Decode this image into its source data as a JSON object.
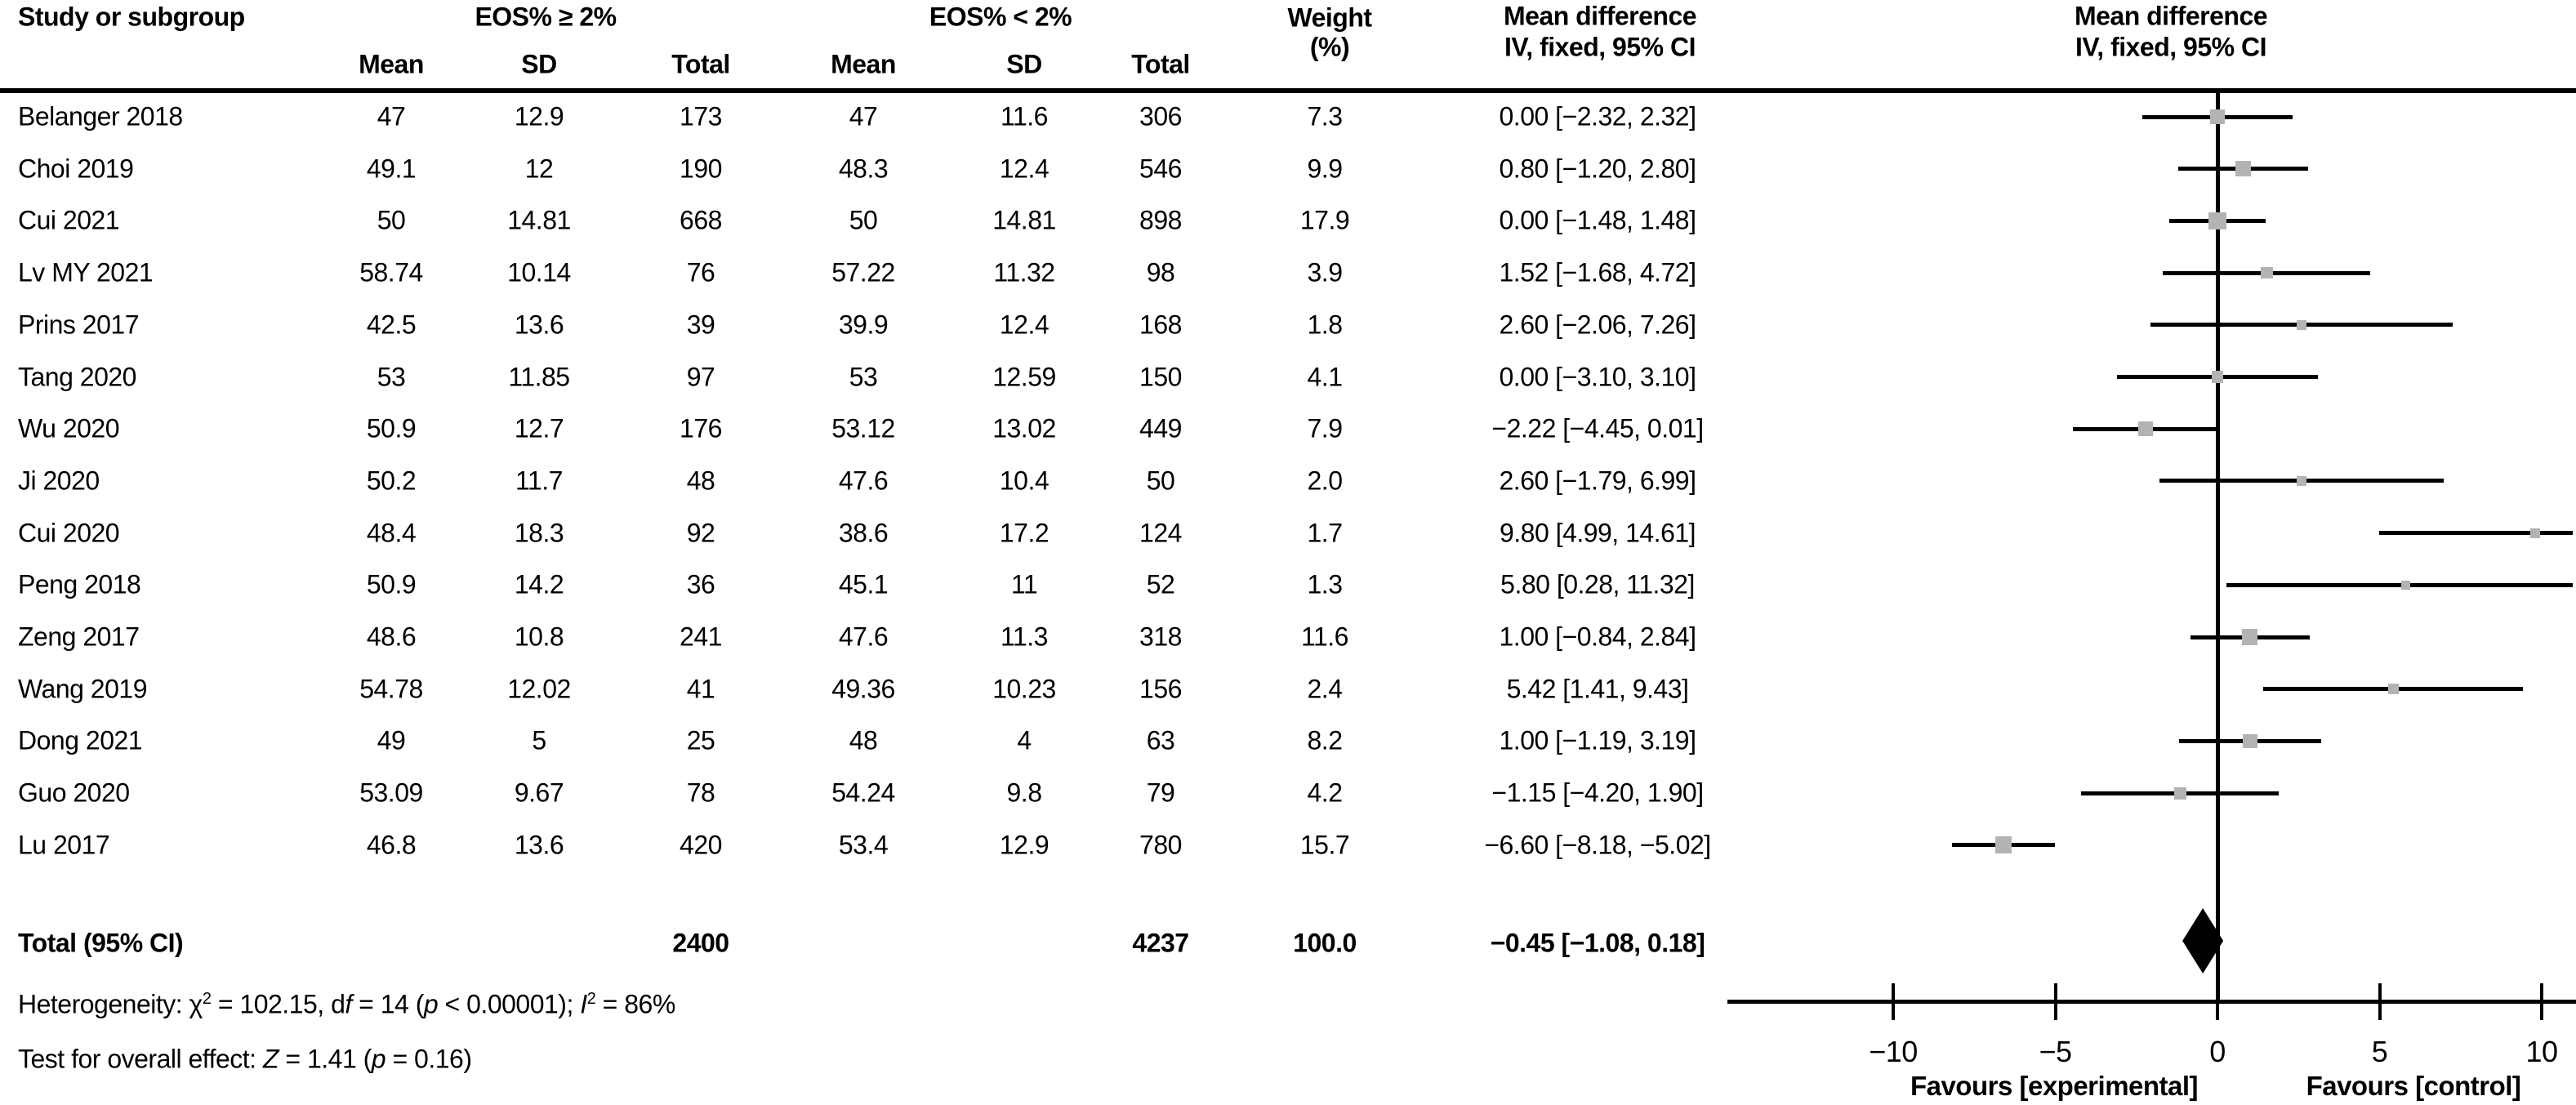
{
  "header": {
    "study": "Study or subgroup",
    "group1_label": "EOS% ≥ 2%",
    "group2_label": "EOS% < 2%",
    "sub_mean1": "Mean",
    "sub_sd1": "SD",
    "sub_total1": "Total",
    "sub_mean2": "Mean",
    "sub_sd2": "SD",
    "sub_total2": "Total",
    "weight_line1": "Weight",
    "weight_line2": "(%)",
    "md_line1": "Mean difference",
    "md_line2": "IV, fixed, 95% CI",
    "plot_line1": "Mean difference",
    "plot_line2": "IV, fixed, 95% CI"
  },
  "chart_data": {
    "type": "forest",
    "effect_measure": "Mean difference IV, fixed, 95% CI",
    "studies": [
      {
        "name": "Belanger 2018",
        "mean1": "47",
        "sd1": "12.9",
        "total1": "173",
        "mean2": "47",
        "sd2": "11.6",
        "total2": "306",
        "weight": "7.3",
        "ci_text": "0.00 [−2.32, 2.32]",
        "est": 0.0,
        "lo": -2.32,
        "hi": 2.32
      },
      {
        "name": "Choi 2019",
        "mean1": "49.1",
        "sd1": "12",
        "total1": "190",
        "mean2": "48.3",
        "sd2": "12.4",
        "total2": "546",
        "weight": "9.9",
        "ci_text": "0.80 [−1.20, 2.80]",
        "est": 0.8,
        "lo": -1.2,
        "hi": 2.8
      },
      {
        "name": "Cui 2021",
        "mean1": "50",
        "sd1": "14.81",
        "total1": "668",
        "mean2": "50",
        "sd2": "14.81",
        "total2": "898",
        "weight": "17.9",
        "ci_text": "0.00 [−1.48, 1.48]",
        "est": 0.0,
        "lo": -1.48,
        "hi": 1.48
      },
      {
        "name": "Lv MY 2021",
        "mean1": "58.74",
        "sd1": "10.14",
        "total1": "76",
        "mean2": "57.22",
        "sd2": "11.32",
        "total2": "98",
        "weight": "3.9",
        "ci_text": "1.52 [−1.68, 4.72]",
        "est": 1.52,
        "lo": -1.68,
        "hi": 4.72
      },
      {
        "name": "Prins 2017",
        "mean1": "42.5",
        "sd1": "13.6",
        "total1": "39",
        "mean2": "39.9",
        "sd2": "12.4",
        "total2": "168",
        "weight": "1.8",
        "ci_text": "2.60 [−2.06, 7.26]",
        "est": 2.6,
        "lo": -2.06,
        "hi": 7.26
      },
      {
        "name": "Tang 2020",
        "mean1": "53",
        "sd1": "11.85",
        "total1": "97",
        "mean2": "53",
        "sd2": "12.59",
        "total2": "150",
        "weight": "4.1",
        "ci_text": "0.00 [−3.10, 3.10]",
        "est": 0.0,
        "lo": -3.1,
        "hi": 3.1
      },
      {
        "name": "Wu 2020",
        "mean1": "50.9",
        "sd1": "12.7",
        "total1": "176",
        "mean2": "53.12",
        "sd2": "13.02",
        "total2": "449",
        "weight": "7.9",
        "ci_text": "−2.22 [−4.45, 0.01]",
        "est": -2.22,
        "lo": -4.45,
        "hi": 0.01
      },
      {
        "name": "Ji 2020",
        "mean1": "50.2",
        "sd1": "11.7",
        "total1": "48",
        "mean2": "47.6",
        "sd2": "10.4",
        "total2": "50",
        "weight": "2.0",
        "ci_text": "2.60 [−1.79, 6.99]",
        "est": 2.6,
        "lo": -1.79,
        "hi": 6.99
      },
      {
        "name": "Cui 2020",
        "mean1": "48.4",
        "sd1": "18.3",
        "total1": "92",
        "mean2": "38.6",
        "sd2": "17.2",
        "total2": "124",
        "weight": "1.7",
        "ci_text": "9.80 [4.99, 14.61]",
        "est": 9.8,
        "lo": 4.99,
        "hi": 14.61
      },
      {
        "name": "Peng 2018",
        "mean1": "50.9",
        "sd1": "14.2",
        "total1": "36",
        "mean2": "45.1",
        "sd2": "11",
        "total2": "52",
        "weight": "1.3",
        "ci_text": "5.80 [0.28, 11.32]",
        "est": 5.8,
        "lo": 0.28,
        "hi": 11.32
      },
      {
        "name": "Zeng 2017",
        "mean1": "48.6",
        "sd1": "10.8",
        "total1": "241",
        "mean2": "47.6",
        "sd2": "11.3",
        "total2": "318",
        "weight": "11.6",
        "ci_text": "1.00 [−0.84, 2.84]",
        "est": 1.0,
        "lo": -0.84,
        "hi": 2.84
      },
      {
        "name": "Wang 2019",
        "mean1": "54.78",
        "sd1": "12.02",
        "total1": "41",
        "mean2": "49.36",
        "sd2": "10.23",
        "total2": "156",
        "weight": "2.4",
        "ci_text": "5.42 [1.41, 9.43]",
        "est": 5.42,
        "lo": 1.41,
        "hi": 9.43
      },
      {
        "name": "Dong 2021",
        "mean1": "49",
        "sd1": "5",
        "total1": "25",
        "mean2": "48",
        "sd2": "4",
        "total2": "63",
        "weight": "8.2",
        "ci_text": "1.00 [−1.19, 3.19]",
        "est": 1.0,
        "lo": -1.19,
        "hi": 3.19
      },
      {
        "name": "Guo 2020",
        "mean1": "53.09",
        "sd1": "9.67",
        "total1": "78",
        "mean2": "54.24",
        "sd2": "9.8",
        "total2": "79",
        "weight": "4.2",
        "ci_text": "−1.15 [−4.20, 1.90]",
        "est": -1.15,
        "lo": -4.2,
        "hi": 1.9
      },
      {
        "name": "Lu 2017",
        "mean1": "46.8",
        "sd1": "13.6",
        "total1": "420",
        "mean2": "53.4",
        "sd2": "12.9",
        "total2": "780",
        "weight": "15.7",
        "ci_text": "−6.60 [−8.18, −5.02]",
        "est": -6.6,
        "lo": -8.18,
        "hi": -5.02
      }
    ],
    "total": {
      "label": "Total (95% CI)",
      "total1": "2400",
      "total2": "4237",
      "weight": "100.0",
      "ci_text": "−0.45 [−1.08, 0.18]",
      "est": -0.45,
      "lo": -1.08,
      "hi": 0.18
    },
    "axis": {
      "ticks": [
        -10,
        -5,
        0,
        5,
        10
      ],
      "tick_labels": [
        "−10",
        "−5",
        "0",
        "5",
        "10"
      ],
      "xmin": -15.1,
      "xmax": 11.1,
      "zero_line": 0
    },
    "favours_left": "Favours [experimental]",
    "favours_right": "Favours [control]",
    "heterogeneity": {
      "p1": "Heterogeneity: χ",
      "sup1": "2",
      "p2": " = 102.15, d",
      "it1": "f",
      "p3": " = 14 (",
      "it2": "p",
      "p4": " < 0.00001); ",
      "it3": "I",
      "sup2": "2",
      "p5": " = 86%"
    },
    "overall_test": {
      "p1": "Test for overall effect: ",
      "it1": "Z",
      "p2": " = 1.41 (",
      "it2": "p",
      "p3": " = 0.16)"
    }
  },
  "colors": {
    "marker": "#b3b3b3",
    "ink": "#000000"
  }
}
